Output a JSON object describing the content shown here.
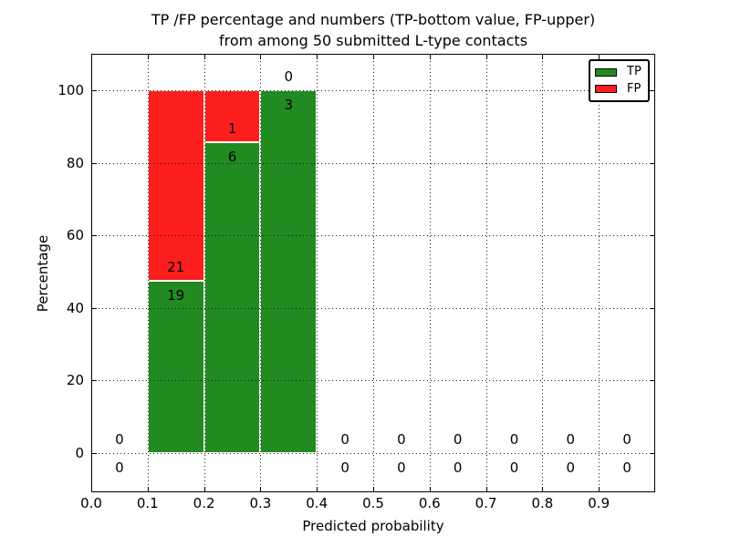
{
  "figure": {
    "title_line1": "TP /FP percentage and numbers (TP-bottom value, FP-upper)",
    "title_line2": "from among 50 submitted L-type contacts"
  },
  "chart_data": {
    "type": "bar",
    "stacked": true,
    "title": "TP /FP percentage and numbers (TP-bottom value, FP-upper)\nfrom among 50 submitted L-type contacts",
    "xlabel": "Predicted probability",
    "ylabel": "Percentage",
    "x_ticks": [
      0.0,
      0.1,
      0.2,
      0.3,
      0.4,
      0.5,
      0.6,
      0.7,
      0.8,
      0.9
    ],
    "x_tick_labels": [
      "0.0",
      "0.1",
      "0.2",
      "0.3",
      "0.4",
      "0.5",
      "0.6",
      "0.7",
      "0.8",
      "0.9"
    ],
    "y_ticks": [
      0,
      20,
      40,
      60,
      80,
      100
    ],
    "y_tick_labels": [
      "0",
      "20",
      "40",
      "60",
      "80",
      "100"
    ],
    "xlim": [
      0.0,
      1.0
    ],
    "ylim": [
      -10.8,
      110.1
    ],
    "grid": {
      "visible": true,
      "style": "dotted",
      "above_bars": true
    },
    "total_contacts": 50,
    "annotation_rule": "TP-bottom value, FP-upper",
    "bins": [
      {
        "range": [
          0.0,
          0.1
        ],
        "tp_count": 0,
        "fp_count": 0,
        "tp_pct": 0,
        "fp_pct": 0
      },
      {
        "range": [
          0.1,
          0.2
        ],
        "tp_count": 19,
        "fp_count": 21,
        "tp_pct": 47.5,
        "fp_pct": 52.5
      },
      {
        "range": [
          0.2,
          0.3
        ],
        "tp_count": 6,
        "fp_count": 1,
        "tp_pct": 85.71,
        "fp_pct": 14.29
      },
      {
        "range": [
          0.3,
          0.4
        ],
        "tp_count": 3,
        "fp_count": 0,
        "tp_pct": 100,
        "fp_pct": 0
      },
      {
        "range": [
          0.4,
          0.5
        ],
        "tp_count": 0,
        "fp_count": 0,
        "tp_pct": 0,
        "fp_pct": 0
      },
      {
        "range": [
          0.5,
          0.6
        ],
        "tp_count": 0,
        "fp_count": 0,
        "tp_pct": 0,
        "fp_pct": 0
      },
      {
        "range": [
          0.6,
          0.7
        ],
        "tp_count": 0,
        "fp_count": 0,
        "tp_pct": 0,
        "fp_pct": 0
      },
      {
        "range": [
          0.7,
          0.8
        ],
        "tp_count": 0,
        "fp_count": 0,
        "tp_pct": 0,
        "fp_pct": 0
      },
      {
        "range": [
          0.8,
          0.9
        ],
        "tp_count": 0,
        "fp_count": 0,
        "tp_pct": 0,
        "fp_pct": 0
      },
      {
        "range": [
          0.9,
          1.0
        ],
        "tp_count": 0,
        "fp_count": 0,
        "tp_pct": 0,
        "fp_pct": 0
      }
    ],
    "legend": {
      "position": "upper right",
      "entries": [
        {
          "label": "TP",
          "color": "#218a21"
        },
        {
          "label": "FP",
          "color": "#fd1e1e"
        }
      ]
    },
    "colors": {
      "tp": "#218a21",
      "fp": "#fd1e1e",
      "background": "#ffffff",
      "text": "#000000"
    }
  }
}
